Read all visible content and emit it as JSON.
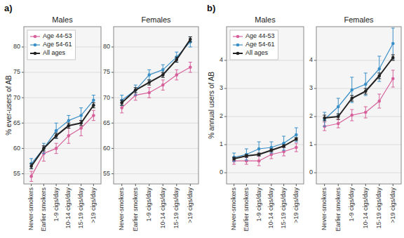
{
  "chart_data": [
    {
      "type": "line",
      "title": "Males",
      "ylabel": "% ever-users of AB",
      "annotations": [
        "a)"
      ],
      "categories": [
        "Never-smokers",
        "Earlier smokers",
        "1-9 cigs/day",
        "10-14 cigs/day",
        "15-19 cigs/day",
        ">19 cigs/day"
      ],
      "ylim": [
        53,
        84
      ],
      "yticks": [
        55,
        60,
        65,
        70,
        75,
        80
      ],
      "grid": true,
      "legend": "upper left",
      "marker": "circle",
      "series": [
        {
          "name": "Age 44-53",
          "color": "#d6619a",
          "values": [
            54.5,
            59.0,
            60.0,
            62.5,
            64.0,
            66.5
          ],
          "lower": [
            53.5,
            57.5,
            59.0,
            61.0,
            62.5,
            65.5
          ],
          "upper": [
            55.5,
            60.5,
            61.0,
            64.0,
            65.5,
            67.5
          ]
        },
        {
          "name": "Age 54-61",
          "color": "#3a8fc7",
          "values": [
            57.0,
            60.0,
            63.5,
            65.5,
            66.5,
            69.5
          ],
          "lower": [
            56.0,
            59.0,
            62.0,
            64.5,
            65.0,
            68.5
          ],
          "upper": [
            58.0,
            61.0,
            65.0,
            66.5,
            68.0,
            70.5
          ]
        },
        {
          "name": "All ages",
          "color": "#222222",
          "values": [
            56.5,
            60.0,
            62.5,
            64.5,
            65.0,
            68.5
          ],
          "lower": [
            56.0,
            59.5,
            62.0,
            64.0,
            64.5,
            68.0
          ],
          "upper": [
            57.0,
            60.5,
            63.0,
            65.0,
            65.5,
            69.0
          ]
        }
      ]
    },
    {
      "type": "line",
      "title": "Females",
      "categories": [
        "Never-smokers",
        "Earlier smokers",
        "1-9 cigs/day",
        "10-14 cigs/day",
        "15-19 cigs/day",
        ">19 cigs/day"
      ],
      "ylim": [
        53,
        84
      ],
      "yticks": [
        55,
        60,
        65,
        70,
        75,
        80
      ],
      "grid": true,
      "legend": false,
      "marker": "circle",
      "series": [
        {
          "name": "Age 44-53",
          "color": "#d6619a",
          "values": [
            68.0,
            70.5,
            71.0,
            72.5,
            74.5,
            76.0
          ],
          "lower": [
            67.0,
            69.5,
            70.0,
            71.5,
            73.5,
            75.0
          ],
          "upper": [
            69.0,
            71.5,
            72.0,
            73.5,
            75.5,
            77.0
          ]
        },
        {
          "name": "Age 54-61",
          "color": "#3a8fc7",
          "values": [
            69.5,
            71.5,
            74.5,
            75.5,
            78.0,
            81.0
          ],
          "lower": [
            68.5,
            70.5,
            73.5,
            74.5,
            77.0,
            80.0
          ],
          "upper": [
            70.5,
            72.5,
            75.5,
            76.5,
            79.0,
            82.0
          ]
        },
        {
          "name": "All ages",
          "color": "#222222",
          "values": [
            69.0,
            71.5,
            73.0,
            74.5,
            77.5,
            81.5
          ],
          "lower": [
            68.5,
            71.0,
            72.5,
            74.0,
            77.0,
            81.0
          ],
          "upper": [
            69.5,
            72.0,
            73.5,
            75.0,
            78.0,
            82.0
          ]
        }
      ]
    },
    {
      "type": "line",
      "title": "Males",
      "ylabel": "% annual users of AB",
      "annotations": [
        "b)"
      ],
      "categories": [
        "Never-smokers",
        "Earlier smokers",
        "1-9 cigs/day",
        "10-14 cigs/day",
        "15-19 cigs/day",
        ">19 cigs/day"
      ],
      "ylim": [
        -0.4,
        5.2
      ],
      "yticks": [
        0,
        1,
        2,
        3,
        4
      ],
      "grid": true,
      "legend": "upper left",
      "marker": "circle",
      "series": [
        {
          "name": "Age 44-53",
          "color": "#d6619a",
          "values": [
            0.42,
            0.42,
            0.42,
            0.65,
            0.75,
            0.9
          ],
          "lower": [
            0.3,
            0.3,
            0.25,
            0.5,
            0.6,
            0.75
          ],
          "upper": [
            0.54,
            0.54,
            0.59,
            0.8,
            0.9,
            1.05
          ]
        },
        {
          "name": "Age 54-61",
          "color": "#3a8fc7",
          "values": [
            0.55,
            0.65,
            0.85,
            0.9,
            1.05,
            1.35
          ],
          "lower": [
            0.4,
            0.45,
            0.6,
            0.7,
            0.8,
            1.1
          ],
          "upper": [
            0.7,
            0.85,
            1.1,
            1.1,
            1.3,
            1.6
          ]
        },
        {
          "name": "All ages",
          "color": "#222222",
          "values": [
            0.5,
            0.6,
            0.65,
            0.8,
            0.95,
            1.2
          ],
          "lower": [
            0.45,
            0.55,
            0.6,
            0.75,
            0.9,
            1.15
          ],
          "upper": [
            0.55,
            0.65,
            0.7,
            0.85,
            1.0,
            1.25
          ]
        }
      ]
    },
    {
      "type": "line",
      "title": "Females",
      "categories": [
        "Never-smokers",
        "Earlier smokers",
        "1-9 cigs/day",
        "10-14 cigs/day",
        "15-19 cigs/day",
        ">19 cigs/day"
      ],
      "ylim": [
        -0.4,
        5.2
      ],
      "yticks": [
        0,
        1,
        2,
        3,
        4
      ],
      "grid": true,
      "legend": false,
      "marker": "circle",
      "series": [
        {
          "name": "Age 44-53",
          "color": "#d6619a",
          "values": [
            1.65,
            1.75,
            2.05,
            2.15,
            2.55,
            3.35
          ],
          "lower": [
            1.5,
            1.6,
            1.85,
            1.95,
            2.3,
            3.05
          ],
          "upper": [
            1.8,
            1.9,
            2.25,
            2.35,
            2.8,
            3.65
          ]
        },
        {
          "name": "Age 54-61",
          "color": "#3a8fc7",
          "values": [
            1.9,
            2.35,
            2.95,
            3.15,
            3.7,
            4.6
          ],
          "lower": [
            1.65,
            2.05,
            2.5,
            2.75,
            3.25,
            4.05
          ],
          "upper": [
            2.15,
            2.65,
            3.4,
            3.55,
            4.15,
            5.15
          ]
        },
        {
          "name": "All ages",
          "color": "#222222",
          "values": [
            1.95,
            2.0,
            2.65,
            2.9,
            3.45,
            4.1
          ],
          "lower": [
            1.85,
            1.9,
            2.55,
            2.8,
            3.35,
            4.0
          ],
          "upper": [
            2.05,
            2.1,
            2.75,
            3.0,
            3.55,
            4.2
          ]
        }
      ]
    }
  ]
}
